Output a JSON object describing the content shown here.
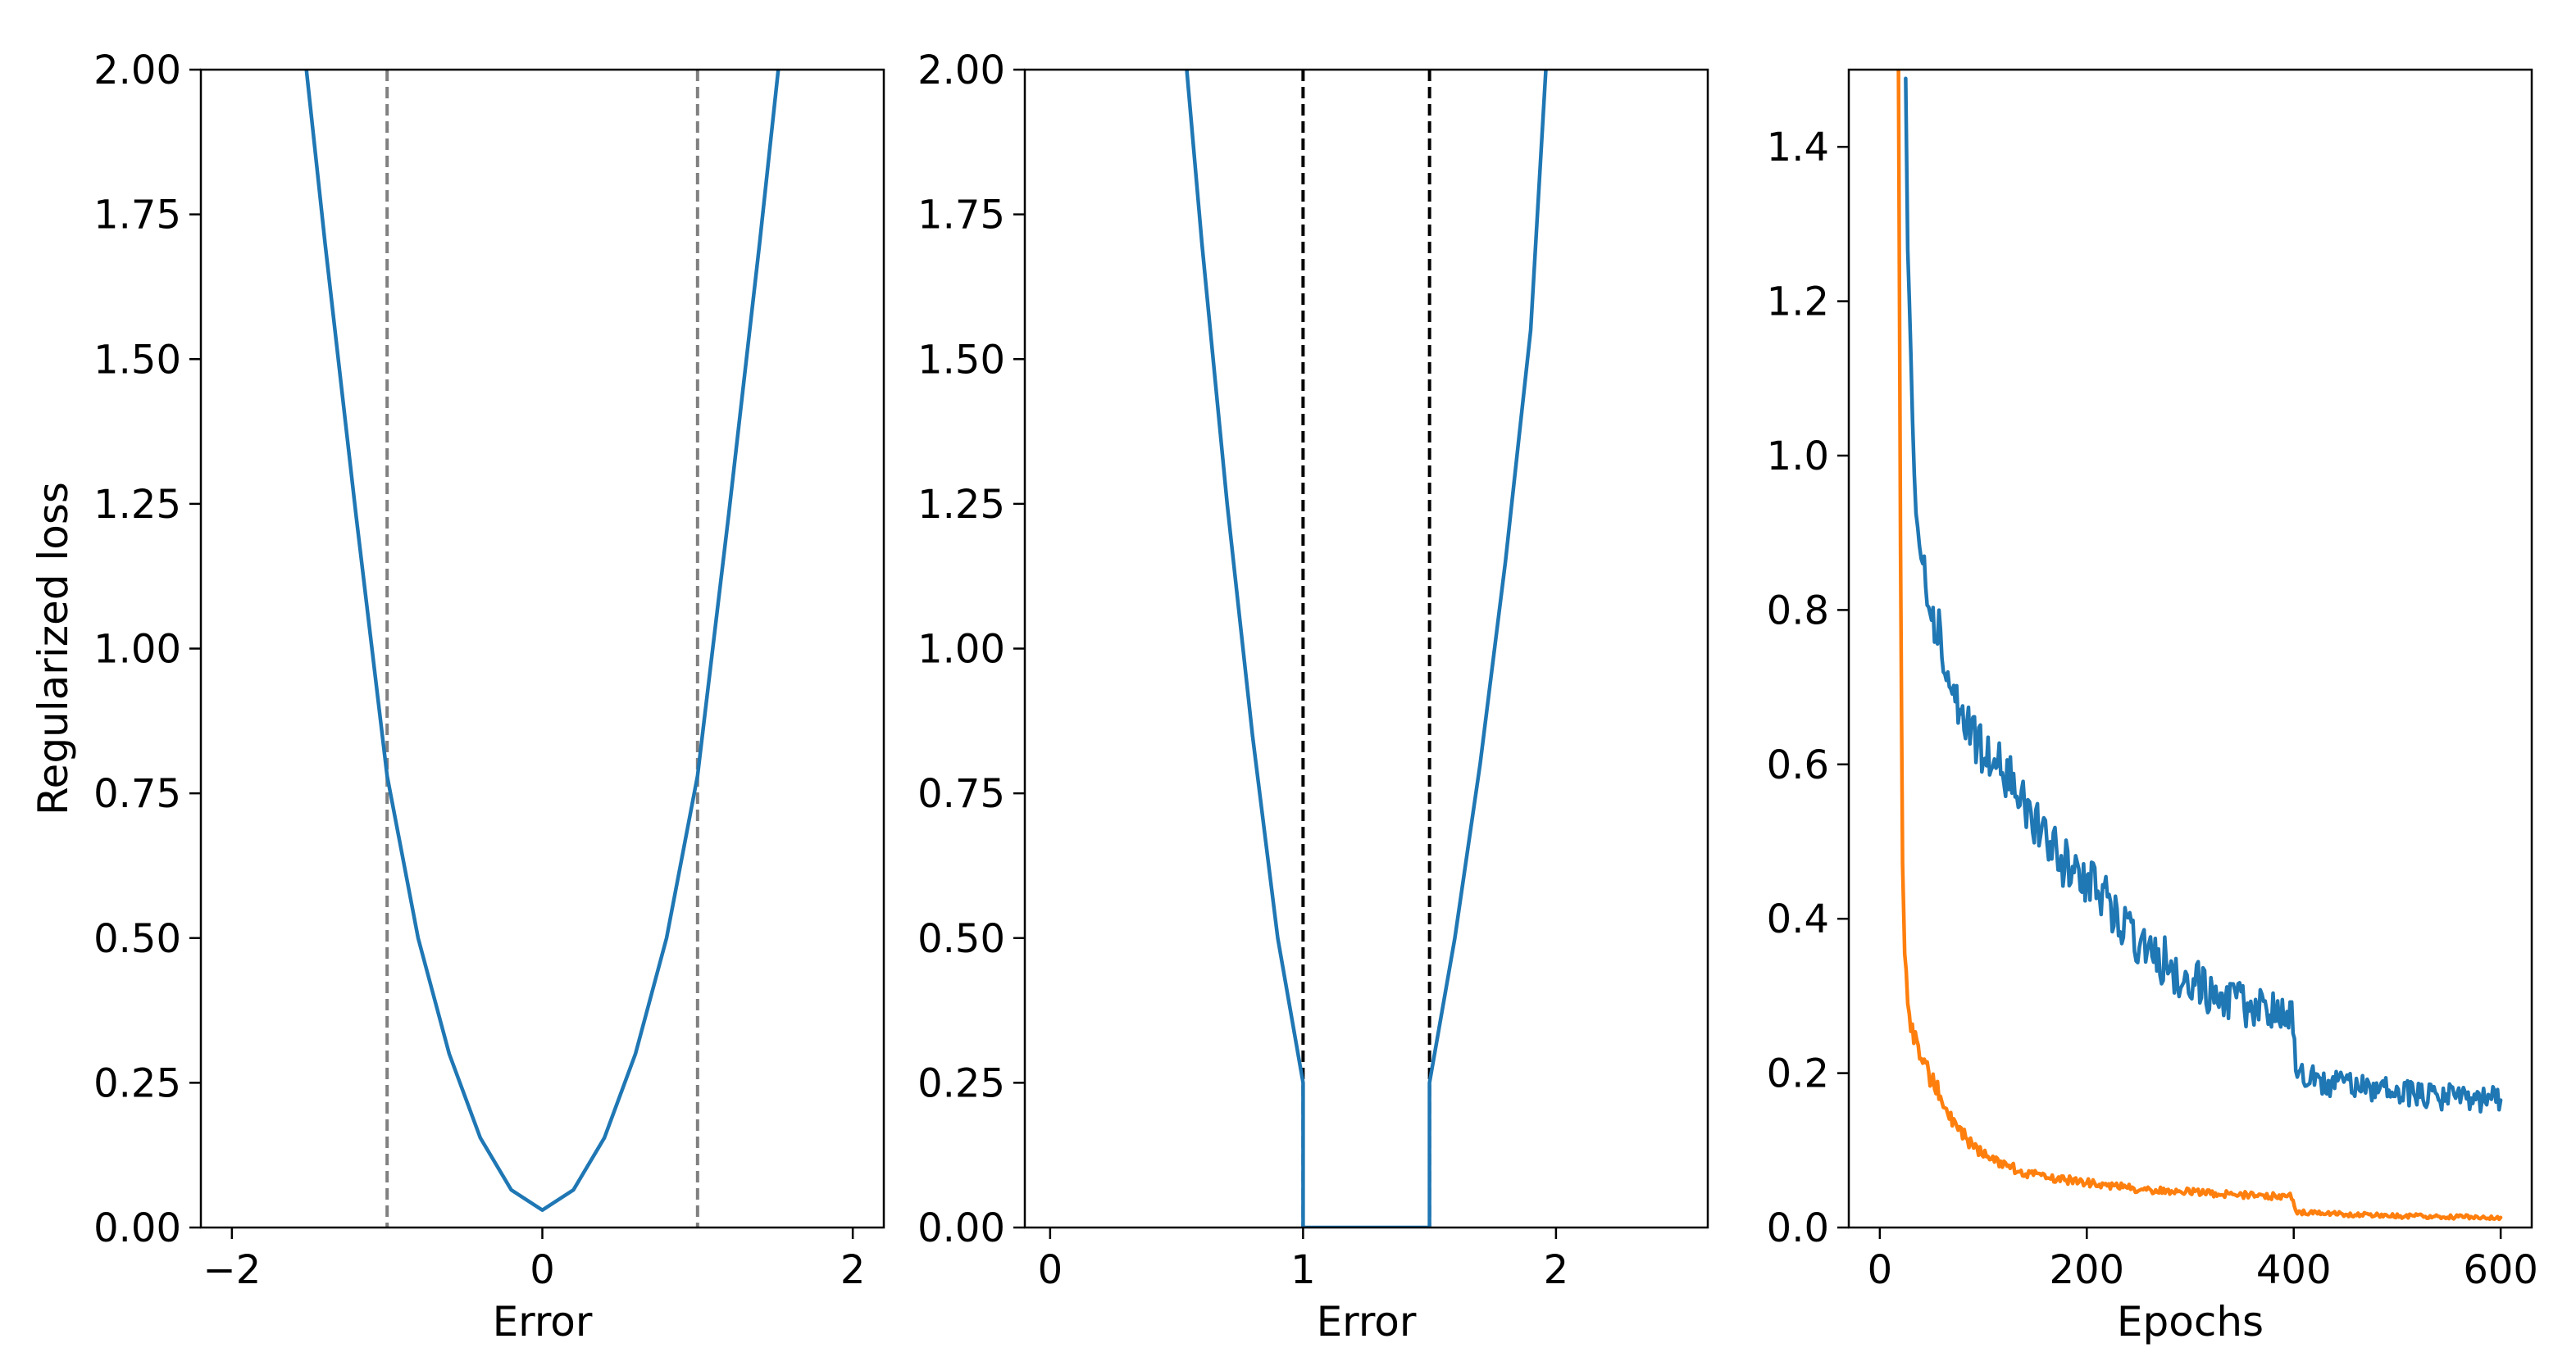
{
  "colors": {
    "blue": "#1f77b4",
    "orange": "#ff7f0e",
    "gray": "#808080",
    "black": "#000000"
  },
  "chart_data": [
    {
      "type": "line",
      "xlabel": "Error",
      "ylabel": "Regularized loss",
      "xlim": [
        -2.2,
        2.2
      ],
      "ylim": [
        0,
        2
      ],
      "xticks": [
        -2,
        0,
        2
      ],
      "xtick_labels": [
        "−2",
        "0",
        "2"
      ],
      "yticks": [
        0,
        0.25,
        0.5,
        0.75,
        1.0,
        1.25,
        1.5,
        1.75,
        2.0
      ],
      "ytick_labels": [
        "0.00",
        "0.25",
        "0.50",
        "0.75",
        "1.00",
        "1.25",
        "1.50",
        "1.75",
        "2.00"
      ],
      "grid": false,
      "series": [
        {
          "color": "#1f77b4",
          "points": [
            [
              -1.52,
              2.0
            ],
            [
              -1.4,
              1.7
            ],
            [
              -1.2,
              1.23
            ],
            [
              -1.0,
              0.78
            ],
            [
              -0.8,
              0.5
            ],
            [
              -0.6,
              0.3
            ],
            [
              -0.4,
              0.155
            ],
            [
              -0.2,
              0.065
            ],
            [
              0.0,
              0.03
            ],
            [
              0.2,
              0.065
            ],
            [
              0.4,
              0.155
            ],
            [
              0.6,
              0.3
            ],
            [
              0.8,
              0.5
            ],
            [
              1.0,
              0.78
            ],
            [
              1.2,
              1.23
            ],
            [
              1.4,
              1.7
            ],
            [
              1.52,
              2.0
            ]
          ]
        }
      ],
      "vlines": [
        {
          "x": -1.0,
          "color": "#808080",
          "style": "dashed"
        },
        {
          "x": 1.0,
          "color": "#808080",
          "style": "dashed"
        }
      ]
    },
    {
      "type": "line",
      "xlabel": "Error",
      "ylabel": "",
      "xlim": [
        -0.1,
        2.6
      ],
      "ylim": [
        0,
        2
      ],
      "xticks": [
        0,
        1,
        2
      ],
      "xtick_labels": [
        "0",
        "1",
        "2"
      ],
      "yticks": [
        0,
        0.25,
        0.5,
        0.75,
        1.0,
        1.25,
        1.5,
        1.75,
        2.0
      ],
      "ytick_labels": [
        "0.00",
        "0.25",
        "0.50",
        "0.75",
        "1.00",
        "1.25",
        "1.50",
        "1.75",
        "2.00"
      ],
      "grid": false,
      "series": [
        {
          "color": "#1f77b4",
          "points": [
            [
              0.54,
              2.0
            ],
            [
              0.6,
              1.7
            ],
            [
              0.7,
              1.25
            ],
            [
              0.8,
              0.85
            ],
            [
              0.9,
              0.5
            ],
            [
              1.0,
              0.25
            ],
            [
              1.0,
              0.0
            ],
            [
              1.5,
              0.0
            ],
            [
              1.5,
              0.25
            ],
            [
              1.6,
              0.5
            ],
            [
              1.7,
              0.8
            ],
            [
              1.8,
              1.15
            ],
            [
              1.9,
              1.55
            ],
            [
              1.96,
              2.0
            ]
          ]
        }
      ],
      "vlines": [
        {
          "x": 1.0,
          "color": "#000000",
          "style": "dashed"
        },
        {
          "x": 1.5,
          "color": "#000000",
          "style": "dashed"
        }
      ]
    },
    {
      "type": "line",
      "xlabel": "Epochs",
      "ylabel": "",
      "xlim": [
        -30,
        630
      ],
      "ylim": [
        0,
        1.5
      ],
      "xticks": [
        0,
        200,
        400,
        600
      ],
      "xtick_labels": [
        "0",
        "200",
        "400",
        "600"
      ],
      "yticks": [
        0,
        0.2,
        0.4,
        0.6,
        0.8,
        1.0,
        1.2,
        1.4
      ],
      "ytick_labels": [
        "0.0",
        "0.2",
        "0.4",
        "0.6",
        "0.8",
        "1.0",
        "1.2",
        "1.4"
      ],
      "grid": false,
      "series": [
        {
          "color": "#1f77b4",
          "points": [
            [
              25,
              1.5
            ],
            [
              27,
              1.3
            ],
            [
              30,
              1.1
            ],
            [
              35,
              0.92
            ],
            [
              40,
              0.86
            ],
            [
              50,
              0.8
            ],
            [
              60,
              0.76
            ],
            [
              70,
              0.7
            ],
            [
              80,
              0.66
            ],
            [
              90,
              0.64
            ],
            [
              100,
              0.62
            ],
            [
              120,
              0.59
            ],
            [
              140,
              0.55
            ],
            [
              160,
              0.5
            ],
            [
              180,
              0.47
            ],
            [
              200,
              0.45
            ],
            [
              220,
              0.42
            ],
            [
              240,
              0.39
            ],
            [
              260,
              0.36
            ],
            [
              280,
              0.34
            ],
            [
              300,
              0.32
            ],
            [
              320,
              0.305
            ],
            [
              340,
              0.295
            ],
            [
              360,
              0.285
            ],
            [
              380,
              0.28
            ],
            [
              398,
              0.275
            ],
            [
              402,
              0.2
            ],
            [
              420,
              0.19
            ],
            [
              450,
              0.185
            ],
            [
              480,
              0.18
            ],
            [
              510,
              0.175
            ],
            [
              540,
              0.17
            ],
            [
              570,
              0.168
            ],
            [
              600,
              0.165
            ]
          ]
        },
        {
          "color": "#ff7f0e",
          "points": [
            [
              18,
              1.5
            ],
            [
              19,
              1.2
            ],
            [
              20,
              0.9
            ],
            [
              21,
              0.65
            ],
            [
              22,
              0.48
            ],
            [
              24,
              0.36
            ],
            [
              27,
              0.3
            ],
            [
              30,
              0.26
            ],
            [
              40,
              0.22
            ],
            [
              50,
              0.19
            ],
            [
              60,
              0.17
            ],
            [
              70,
              0.14
            ],
            [
              80,
              0.12
            ],
            [
              100,
              0.095
            ],
            [
              120,
              0.08
            ],
            [
              150,
              0.068
            ],
            [
              200,
              0.058
            ],
            [
              250,
              0.05
            ],
            [
              300,
              0.046
            ],
            [
              350,
              0.042
            ],
            [
              398,
              0.04
            ],
            [
              402,
              0.02
            ],
            [
              450,
              0.017
            ],
            [
              500,
              0.015
            ],
            [
              550,
              0.014
            ],
            [
              600,
              0.013
            ]
          ]
        }
      ],
      "vlines": []
    }
  ]
}
